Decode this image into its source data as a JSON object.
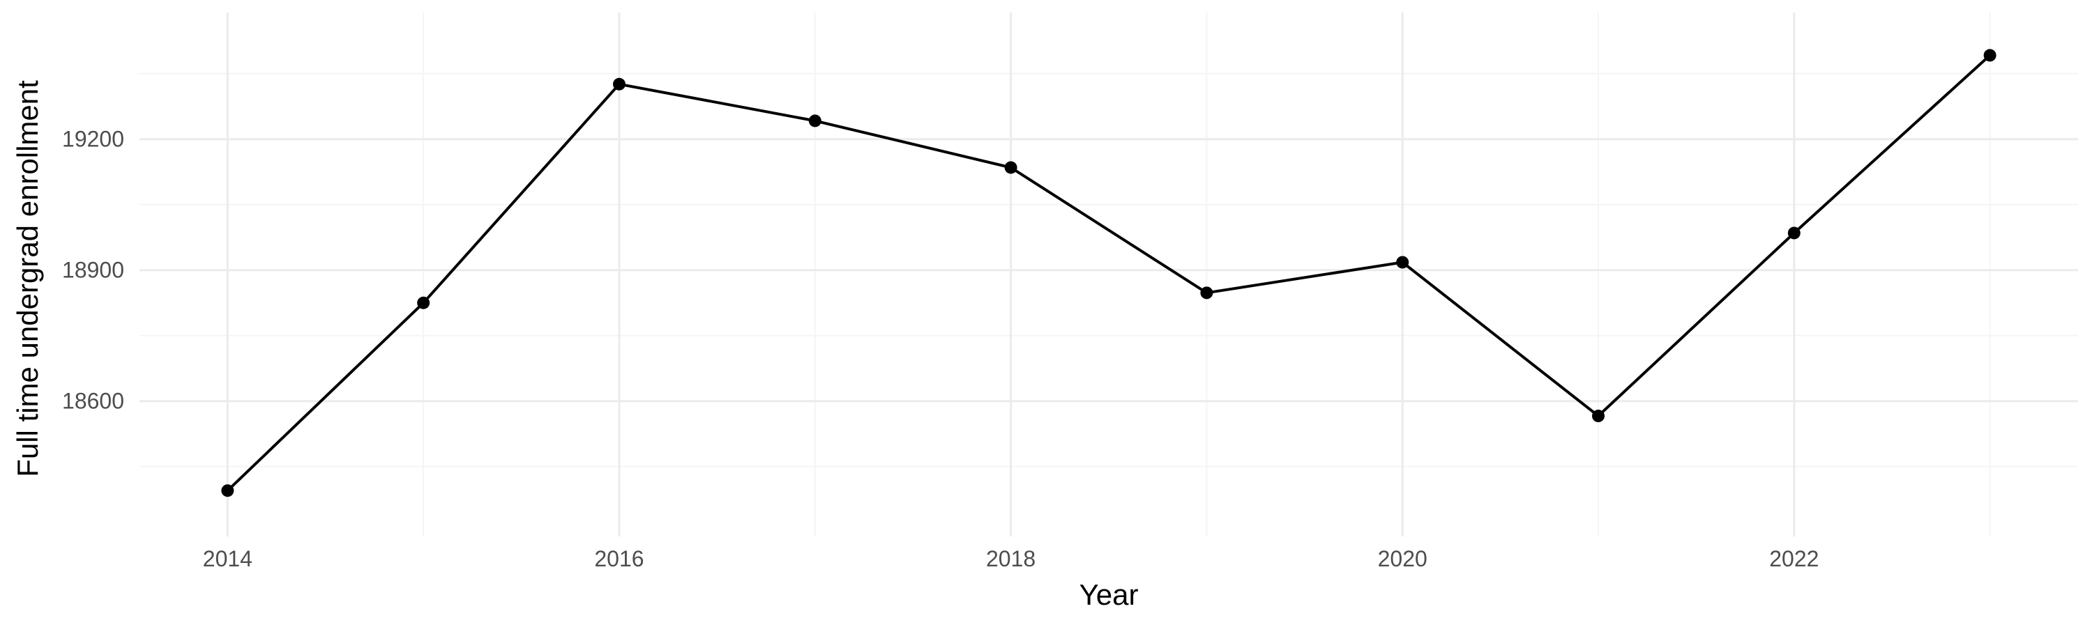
{
  "chart_data": {
    "type": "line",
    "title": "",
    "xlabel": "Year",
    "ylabel": "Full time undergrad enrollment",
    "x": [
      2014,
      2015,
      2016,
      2017,
      2018,
      2019,
      2020,
      2021,
      2022,
      2023
    ],
    "series": [
      {
        "values": [
          18395,
          18825,
          19326,
          19242,
          19135,
          18848,
          18918,
          18566,
          18985,
          19392
        ]
      }
    ],
    "xlim": [
      2013.55,
      2023.45
    ],
    "ylim": [
      18290,
      19490
    ],
    "x_ticks": [
      2014,
      2016,
      2018,
      2020,
      2022
    ],
    "x_tick_labels": [
      "2014",
      "2016",
      "2018",
      "2020",
      "2022"
    ],
    "x_minor_ticks": [
      2015,
      2017,
      2019,
      2021,
      2023
    ],
    "y_ticks": [
      18600,
      18900,
      19200
    ],
    "y_tick_labels": [
      "18600",
      "18900",
      "19200"
    ],
    "y_minor_ticks": [
      18450,
      18750,
      19050,
      19350
    ],
    "grid": true,
    "legend": "none",
    "colors": {
      "background": "#ffffff",
      "grid_major": "#ebebeb",
      "grid_minor": "#f5f5f5",
      "line": "#000000",
      "point": "#000000",
      "tick_text": "#4d4d4d",
      "axis_title": "#000000"
    }
  }
}
